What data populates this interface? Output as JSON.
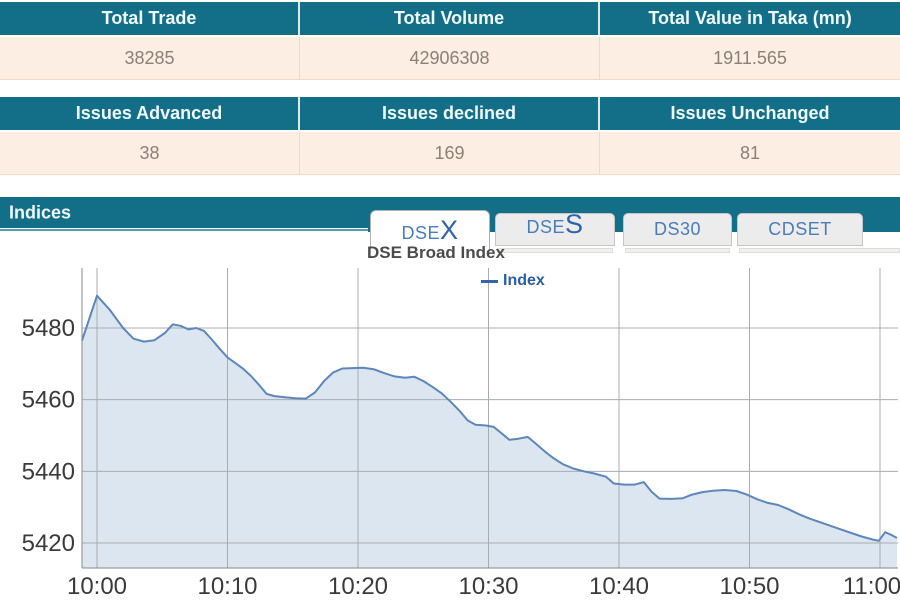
{
  "summary_table": {
    "headers": [
      "Total Trade",
      "Total Volume",
      "Total Value in Taka (mn)"
    ],
    "values": [
      "38285",
      "42906308",
      "1911.565"
    ]
  },
  "issues_table": {
    "headers": [
      "Issues Advanced",
      "Issues declined",
      "Issues Unchanged"
    ],
    "values": [
      "38",
      "169",
      "81"
    ]
  },
  "indices": {
    "title": "Indices",
    "tabs": [
      {
        "prefix": "DSE",
        "suffix": "X",
        "active": true
      },
      {
        "prefix": "DSE",
        "suffix": "S",
        "active": false
      },
      {
        "label": "DS30",
        "active": false
      },
      {
        "label": "CDSET",
        "active": false
      }
    ]
  },
  "colors": {
    "teal": "#126f87",
    "teal-dark": "#0d5668",
    "teal-light": "#4f9fae",
    "peach": "#fceee2",
    "header-text": "#f0fafb",
    "value-text": "#8b8077",
    "tab-bg": "#ececec",
    "tab-text": "#4a7cb8",
    "tab-accent": "#2f62a6",
    "title-text": "#4b4b4b",
    "legend-text": "#2c5da0",
    "legend-marker": "#3465a8"
  },
  "chart_data": {
    "type": "area",
    "title": "DSE Broad Index",
    "legend_label": "Index",
    "legend_position": "top",
    "grid": true,
    "x_ticks": [
      "10:00",
      "10:10",
      "10:20",
      "10:30",
      "10:40",
      "10:50",
      "11:00"
    ],
    "x_tick_minutes": [
      0,
      10,
      20,
      30,
      40,
      50,
      60
    ],
    "y_ticks": [
      5420,
      5440,
      5460,
      5480
    ],
    "ylim": [
      5413,
      5497
    ],
    "xlim_minutes": [
      -1.2,
      61.4
    ],
    "xlabel": "",
    "ylabel": "",
    "series": [
      {
        "name": "Index",
        "x_unit": "minutes_from_10:00",
        "points": [
          [
            -1.2,
            5476.5
          ],
          [
            0,
            5489
          ],
          [
            1,
            5485
          ],
          [
            2,
            5480
          ],
          [
            2.8,
            5477
          ],
          [
            3.6,
            5476.2
          ],
          [
            4.4,
            5476.6
          ],
          [
            5.2,
            5478.6
          ],
          [
            5.8,
            5481
          ],
          [
            6.4,
            5480.6
          ],
          [
            7,
            5479.6
          ],
          [
            7.6,
            5480
          ],
          [
            8.2,
            5479.2
          ],
          [
            8.8,
            5476.8
          ],
          [
            9.4,
            5474.2
          ],
          [
            10,
            5471.8
          ],
          [
            10.6,
            5470.2
          ],
          [
            11.2,
            5468.6
          ],
          [
            11.8,
            5466.6
          ],
          [
            12.4,
            5464.2
          ],
          [
            13,
            5461.6
          ],
          [
            13.6,
            5461
          ],
          [
            14.4,
            5460.7
          ],
          [
            15.2,
            5460.4
          ],
          [
            16,
            5460.3
          ],
          [
            16.7,
            5462
          ],
          [
            17.4,
            5465.2
          ],
          [
            18.1,
            5467.6
          ],
          [
            18.8,
            5468.7
          ],
          [
            19.6,
            5468.8
          ],
          [
            20.4,
            5468.9
          ],
          [
            21.2,
            5468.5
          ],
          [
            22,
            5467.4
          ],
          [
            22.8,
            5466.5
          ],
          [
            23.6,
            5466.1
          ],
          [
            24.3,
            5466.4
          ],
          [
            25,
            5465.2
          ],
          [
            25.7,
            5463.6
          ],
          [
            26.4,
            5461.8
          ],
          [
            27.1,
            5459.4
          ],
          [
            27.8,
            5456.8
          ],
          [
            28.4,
            5454.2
          ],
          [
            29,
            5453
          ],
          [
            29.8,
            5452.8
          ],
          [
            30.4,
            5452.4
          ],
          [
            31,
            5450.6
          ],
          [
            31.6,
            5448.8
          ],
          [
            32.3,
            5449.1
          ],
          [
            33,
            5449.6
          ],
          [
            33.6,
            5447.8
          ],
          [
            34.3,
            5445.6
          ],
          [
            35,
            5443.6
          ],
          [
            35.7,
            5442
          ],
          [
            36.5,
            5440.8
          ],
          [
            37.3,
            5440
          ],
          [
            38.1,
            5439.4
          ],
          [
            39,
            5438.5
          ],
          [
            39.6,
            5436.6
          ],
          [
            40.4,
            5436.3
          ],
          [
            41.2,
            5436.3
          ],
          [
            41.9,
            5437
          ],
          [
            42.5,
            5434.3
          ],
          [
            43.1,
            5432.4
          ],
          [
            44,
            5432.3
          ],
          [
            44.9,
            5432.5
          ],
          [
            45.6,
            5433.5
          ],
          [
            46.4,
            5434.2
          ],
          [
            47.2,
            5434.6
          ],
          [
            48.1,
            5434.8
          ],
          [
            49,
            5434.5
          ],
          [
            49.8,
            5433.5
          ],
          [
            50.6,
            5432.2
          ],
          [
            51.4,
            5431.2
          ],
          [
            52.2,
            5430.6
          ],
          [
            53,
            5429.4
          ],
          [
            53.8,
            5428
          ],
          [
            54.6,
            5426.8
          ],
          [
            55.4,
            5425.8
          ],
          [
            56.2,
            5424.8
          ],
          [
            57,
            5423.8
          ],
          [
            57.8,
            5422.8
          ],
          [
            58.6,
            5421.8
          ],
          [
            59.4,
            5421
          ],
          [
            59.9,
            5420.6
          ],
          [
            60.4,
            5423
          ],
          [
            60.9,
            5422.2
          ],
          [
            61.3,
            5421.4
          ]
        ]
      }
    ],
    "colors": {
      "line": "#5e86b8",
      "fill": "#dce6f1",
      "grid": "#a8acb1",
      "axis": "#87898c",
      "tick_text": "#3a3a3a"
    }
  }
}
